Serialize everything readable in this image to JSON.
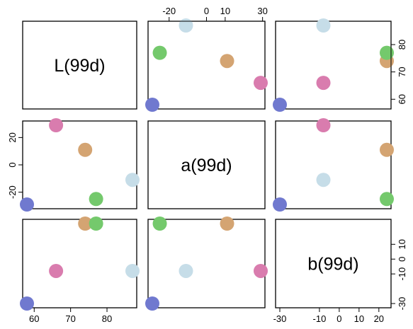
{
  "chart_data": {
    "type": "scatter",
    "variables": [
      "L(99d)",
      "a(99d)",
      "b(99d)"
    ],
    "points": [
      {
        "L": 58,
        "a": -29,
        "b": -30,
        "color": "#7079cf"
      },
      {
        "L": 66,
        "a": 29,
        "b": -8,
        "color": "#d97cae"
      },
      {
        "L": 74,
        "a": 11,
        "b": 24,
        "color": "#d4a472"
      },
      {
        "L": 77,
        "a": -25,
        "b": 24,
        "color": "#74c96c"
      },
      {
        "L": 87,
        "a": -11,
        "b": -8,
        "color": "#c6dde8"
      }
    ],
    "ranges": {
      "L": [
        58,
        87
      ],
      "a": [
        -29,
        29
      ],
      "b": [
        -30,
        24
      ]
    },
    "axes": {
      "top": {
        "var": "a",
        "ticks": [
          -20,
          0,
          10,
          30
        ]
      },
      "right": {
        "var": "L",
        "ticks": [
          60,
          70,
          80
        ]
      },
      "left": {
        "var": "a",
        "ticks": [
          -20,
          0,
          20
        ]
      },
      "right2": {
        "var": "b",
        "ticks": [
          -30,
          -10,
          0,
          10
        ]
      },
      "bottom": {
        "var": "L",
        "ticks": [
          60,
          70,
          80
        ]
      },
      "bottom3": {
        "var": "b",
        "ticks": [
          -30,
          -10,
          0,
          10,
          20
        ]
      }
    },
    "grid": false,
    "legend": "none"
  }
}
